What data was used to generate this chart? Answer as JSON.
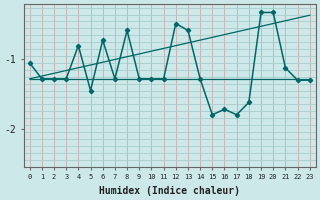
{
  "xlabel": "Humidex (Indice chaleur)",
  "background_color": "#cce8e8",
  "grid_color": "#aacccc",
  "line_color": "#006666",
  "xlim": [
    -0.5,
    23.5
  ],
  "ylim": [
    -2.55,
    -0.2
  ],
  "yticks": [
    -2,
    -1
  ],
  "xticks": [
    0,
    1,
    2,
    3,
    4,
    5,
    6,
    7,
    8,
    9,
    10,
    11,
    12,
    13,
    14,
    15,
    16,
    17,
    18,
    19,
    20,
    21,
    22,
    23
  ],
  "main_y": [
    -1.05,
    -1.28,
    -1.28,
    -1.28,
    -0.8,
    -1.45,
    -0.72,
    -1.28,
    -0.58,
    -1.28,
    -1.28,
    -1.28,
    -0.48,
    -0.58,
    -1.28,
    -1.8,
    -1.72,
    -1.8,
    -1.62,
    -0.32,
    -0.32,
    -1.12,
    -1.3,
    -1.3
  ],
  "trend1_y": [
    -1.28,
    -1.24,
    -1.2,
    -1.16,
    -1.12,
    -1.08,
    -1.04,
    -1.0,
    -0.96,
    -0.92,
    -0.88,
    -0.84,
    -0.8,
    -0.76,
    -0.72,
    -0.68,
    -0.64,
    -0.6,
    -0.56,
    -0.52,
    -0.48,
    -0.44,
    -0.4,
    -0.36
  ],
  "trend2_y": [
    -1.28,
    -1.28,
    -1.28,
    -1.28,
    -1.28,
    -1.28,
    -1.28,
    -1.28,
    -1.28,
    -1.28,
    -1.28,
    -1.28,
    -1.28,
    -1.28,
    -1.28,
    -1.28,
    -1.28,
    -1.28,
    -1.28,
    -1.28,
    -1.28,
    -1.28,
    -1.28,
    -1.28
  ]
}
